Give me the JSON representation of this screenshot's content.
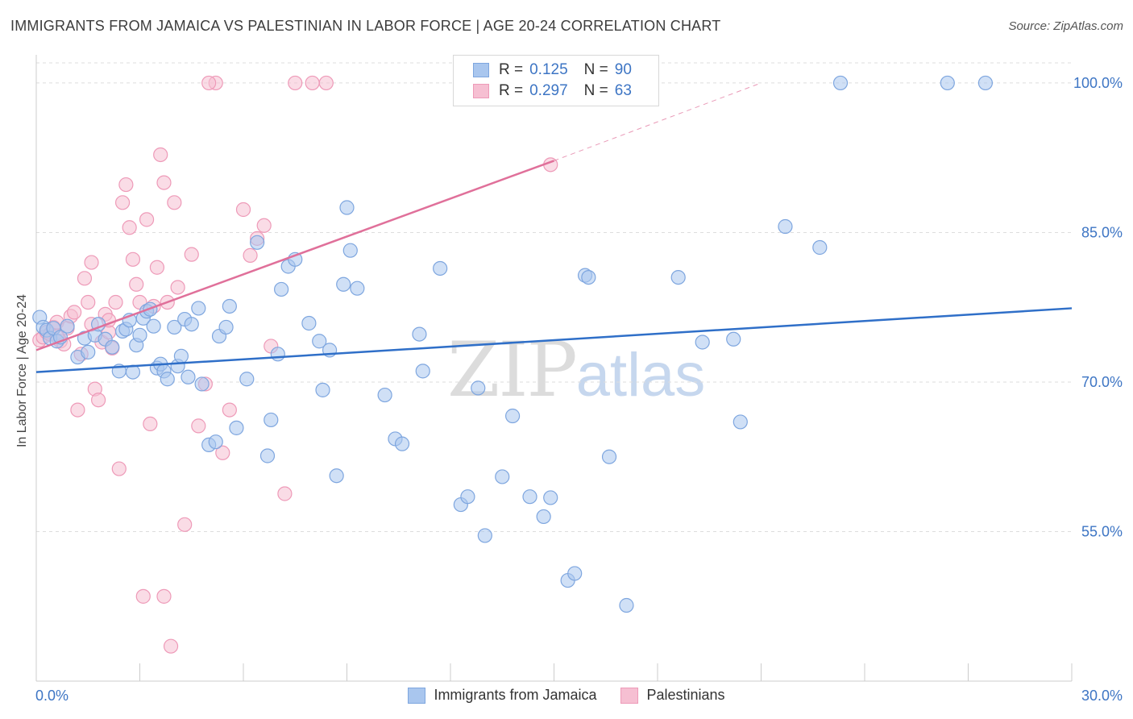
{
  "title": "IMMIGRANTS FROM JAMAICA VS PALESTINIAN IN LABOR FORCE | AGE 20-24 CORRELATION CHART",
  "source": "Source: ZipAtlas.com",
  "watermark": {
    "zip": "ZIP",
    "atlas": "atlas"
  },
  "legend": {
    "r_label": "R =",
    "n_label": "N =",
    "rows": [
      {
        "r": "0.125",
        "n": "90"
      },
      {
        "r": "0.297",
        "n": "63"
      }
    ]
  },
  "colors": {
    "jamaica_fill": "#a9c6ee",
    "jamaica_stroke": "#7ea6df",
    "jamaica_line": "#2f6fc8",
    "pal_fill": "#f6bfd2",
    "pal_stroke": "#ee9ab8",
    "pal_line": "#e0709a",
    "tick_text": "#3d75c4",
    "grid": "#dddddd"
  },
  "chart_data": {
    "type": "scatter",
    "title": "IMMIGRANTS FROM JAMAICA VS PALESTINIAN IN LABOR FORCE | AGE 20-24 CORRELATION CHART",
    "xlabel": "",
    "ylabel": "In Labor Force | Age 20-24",
    "xlim": [
      0,
      30
    ],
    "ylim": [
      40,
      102.5
    ],
    "x_tick_labels": [
      "0.0%",
      "30.0%"
    ],
    "y_ticks": [
      55,
      70,
      85,
      100
    ],
    "y_tick_labels": [
      "55.0%",
      "70.0%",
      "85.0%",
      "100.0%"
    ],
    "series": [
      {
        "name": "Immigrants from Jamaica",
        "R": 0.125,
        "N": 90,
        "trend": {
          "x": [
            0,
            30
          ],
          "y": [
            71.0,
            77.4
          ]
        },
        "points": [
          [
            0.1,
            76.5
          ],
          [
            0.2,
            75.5
          ],
          [
            0.3,
            75.2
          ],
          [
            0.4,
            74.4
          ],
          [
            0.5,
            75.4
          ],
          [
            0.6,
            74.1
          ],
          [
            0.7,
            74.5
          ],
          [
            0.9,
            75.6
          ],
          [
            1.2,
            72.5
          ],
          [
            1.4,
            74.4
          ],
          [
            1.5,
            73.0
          ],
          [
            1.7,
            74.7
          ],
          [
            1.8,
            75.8
          ],
          [
            2.0,
            74.3
          ],
          [
            2.2,
            73.5
          ],
          [
            2.4,
            71.1
          ],
          [
            2.5,
            75.1
          ],
          [
            2.6,
            75.3
          ],
          [
            2.7,
            76.2
          ],
          [
            2.8,
            71.0
          ],
          [
            2.9,
            73.7
          ],
          [
            3.0,
            74.7
          ],
          [
            3.1,
            76.4
          ],
          [
            3.2,
            77.1
          ],
          [
            3.3,
            77.3
          ],
          [
            3.4,
            75.6
          ],
          [
            3.5,
            71.4
          ],
          [
            3.6,
            71.8
          ],
          [
            3.7,
            71.1
          ],
          [
            3.8,
            70.3
          ],
          [
            4.0,
            75.5
          ],
          [
            4.1,
            71.6
          ],
          [
            4.2,
            72.6
          ],
          [
            4.3,
            76.3
          ],
          [
            4.4,
            70.5
          ],
          [
            4.5,
            75.8
          ],
          [
            4.7,
            77.4
          ],
          [
            4.8,
            69.8
          ],
          [
            5.0,
            63.7
          ],
          [
            5.2,
            64.0
          ],
          [
            5.3,
            74.6
          ],
          [
            5.5,
            75.5
          ],
          [
            5.6,
            77.6
          ],
          [
            5.8,
            65.4
          ],
          [
            6.1,
            70.3
          ],
          [
            6.4,
            84.0
          ],
          [
            6.7,
            62.6
          ],
          [
            6.8,
            66.2
          ],
          [
            7.0,
            72.8
          ],
          [
            7.1,
            79.3
          ],
          [
            7.3,
            81.6
          ],
          [
            7.5,
            82.3
          ],
          [
            7.9,
            75.9
          ],
          [
            8.2,
            74.1
          ],
          [
            8.3,
            69.2
          ],
          [
            8.5,
            73.2
          ],
          [
            8.7,
            60.6
          ],
          [
            8.9,
            79.8
          ],
          [
            9.0,
            87.5
          ],
          [
            9.1,
            83.2
          ],
          [
            9.3,
            79.4
          ],
          [
            10.1,
            68.7
          ],
          [
            10.4,
            64.3
          ],
          [
            10.6,
            63.8
          ],
          [
            11.1,
            74.8
          ],
          [
            11.2,
            71.1
          ],
          [
            11.7,
            81.4
          ],
          [
            12.3,
            57.7
          ],
          [
            12.5,
            58.5
          ],
          [
            12.8,
            69.4
          ],
          [
            13.0,
            54.6
          ],
          [
            13.5,
            60.5
          ],
          [
            13.8,
            66.6
          ],
          [
            14.3,
            58.5
          ],
          [
            14.7,
            56.5
          ],
          [
            14.9,
            58.4
          ],
          [
            15.4,
            50.1
          ],
          [
            15.6,
            50.8
          ],
          [
            15.9,
            80.7
          ],
          [
            16.0,
            80.5
          ],
          [
            16.6,
            62.5
          ],
          [
            17.1,
            47.6
          ],
          [
            18.6,
            80.5
          ],
          [
            19.3,
            74.0
          ],
          [
            20.2,
            74.3
          ],
          [
            20.4,
            66.0
          ],
          [
            21.7,
            85.6
          ],
          [
            22.7,
            83.5
          ],
          [
            23.3,
            100.0
          ],
          [
            26.4,
            100.0
          ],
          [
            27.5,
            100.0
          ]
        ]
      },
      {
        "name": "Palestinians",
        "R": 0.297,
        "N": 63,
        "trend": {
          "x": [
            0,
            15.0
          ],
          "y": [
            73.2,
            92.2
          ],
          "dashed_to": {
            "x": 21.0,
            "y": 100.0
          }
        },
        "points": [
          [
            0.1,
            74.2
          ],
          [
            0.2,
            74.5
          ],
          [
            0.3,
            75.0
          ],
          [
            0.4,
            74.8
          ],
          [
            0.5,
            75.5
          ],
          [
            0.6,
            76.0
          ],
          [
            0.7,
            74.1
          ],
          [
            0.8,
            73.8
          ],
          [
            0.9,
            75.4
          ],
          [
            1.0,
            76.6
          ],
          [
            1.1,
            77.0
          ],
          [
            1.2,
            67.2
          ],
          [
            1.3,
            72.8
          ],
          [
            1.4,
            80.4
          ],
          [
            1.5,
            78.0
          ],
          [
            1.6,
            82.0
          ],
          [
            1.7,
            69.3
          ],
          [
            1.8,
            68.2
          ],
          [
            1.9,
            74.0
          ],
          [
            2.0,
            76.8
          ],
          [
            2.1,
            75.0
          ],
          [
            2.2,
            73.4
          ],
          [
            2.3,
            78.0
          ],
          [
            2.4,
            61.3
          ],
          [
            2.5,
            88.0
          ],
          [
            2.6,
            89.8
          ],
          [
            2.7,
            85.5
          ],
          [
            2.8,
            82.3
          ],
          [
            2.9,
            79.8
          ],
          [
            3.0,
            78.0
          ],
          [
            3.1,
            48.5
          ],
          [
            3.2,
            86.3
          ],
          [
            3.3,
            65.8
          ],
          [
            3.4,
            77.6
          ],
          [
            3.5,
            81.5
          ],
          [
            3.6,
            92.8
          ],
          [
            3.7,
            90.0
          ],
          [
            3.8,
            78.0
          ],
          [
            3.9,
            43.5
          ],
          [
            4.1,
            79.5
          ],
          [
            4.3,
            55.7
          ],
          [
            4.5,
            82.8
          ],
          [
            4.7,
            65.6
          ],
          [
            4.9,
            69.8
          ],
          [
            5.2,
            100.0
          ],
          [
            5.4,
            62.9
          ],
          [
            5.6,
            67.2
          ],
          [
            6.0,
            87.3
          ],
          [
            6.2,
            82.7
          ],
          [
            6.4,
            84.4
          ],
          [
            6.6,
            85.7
          ],
          [
            6.8,
            73.6
          ],
          [
            7.2,
            58.8
          ],
          [
            7.5,
            100.0
          ],
          [
            8.0,
            100.0
          ],
          [
            8.4,
            100.0
          ],
          [
            14.9,
            91.8
          ],
          [
            3.7,
            48.5
          ],
          [
            1.6,
            75.8
          ],
          [
            0.6,
            74.6
          ],
          [
            2.1,
            76.2
          ],
          [
            5.0,
            100.0
          ],
          [
            4.0,
            88.0
          ]
        ]
      }
    ]
  },
  "bottom_legend": [
    "Immigrants from Jamaica",
    "Palestinians"
  ]
}
